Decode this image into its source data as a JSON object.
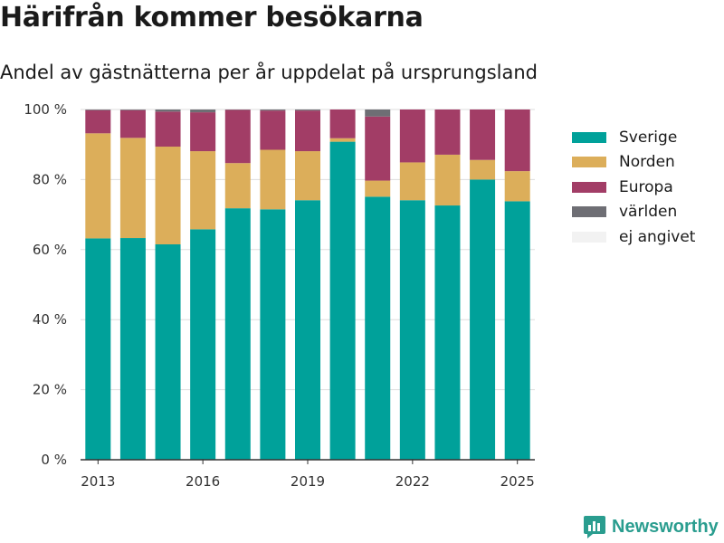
{
  "header": {
    "title": "Härifrån kommer besökarna",
    "subtitle": "Andel av gästnätterna per år uppdelat på ursprungsland"
  },
  "brand": {
    "name": "Newsworthy",
    "icon": "bar-chart-logo-icon",
    "color": "#2a9d8f"
  },
  "colors": {
    "Sverige": "#00a19a",
    "Norden": "#dcae5a",
    "Europa": "#a23d66",
    "världen": "#6e6e74",
    "ej angivet": "#f2f2f2",
    "grid": "#dddddd",
    "axis": "#333333"
  },
  "chart_data": {
    "type": "bar",
    "stacked": true,
    "title": "Härifrån kommer besökarna",
    "subtitle": "Andel av gästnätterna per år uppdelat på ursprungsland",
    "categories": [
      "2013",
      "2014",
      "2015",
      "2016",
      "2017",
      "2018",
      "2019",
      "2020",
      "2021",
      "2022",
      "2023",
      "2024",
      "2025"
    ],
    "x_tick_labels": [
      "2013",
      "2016",
      "2019",
      "2022",
      "2025"
    ],
    "y_tick_labels": [
      "0 %",
      "20 %",
      "40 %",
      "60 %",
      "80 %",
      "100 %"
    ],
    "ylim": [
      0,
      100
    ],
    "grid": true,
    "legend_position": "right",
    "series": [
      {
        "name": "Sverige",
        "values": [
          63.2,
          63.3,
          61.5,
          65.8,
          71.8,
          71.5,
          74.1,
          90.8,
          75.1,
          74.1,
          72.6,
          80.0,
          73.8
        ]
      },
      {
        "name": "Norden",
        "values": [
          30.0,
          28.6,
          27.9,
          22.3,
          12.9,
          17.0,
          14.0,
          1.0,
          4.6,
          10.8,
          14.5,
          5.6,
          8.6
        ]
      },
      {
        "name": "Europa",
        "values": [
          6.6,
          7.9,
          10.0,
          11.1,
          15.2,
          11.2,
          11.6,
          8.2,
          18.3,
          15.1,
          12.9,
          14.4,
          17.6
        ]
      },
      {
        "name": "världen",
        "values": [
          0.2,
          0.2,
          0.6,
          0.8,
          0.1,
          0.3,
          0.3,
          0.0,
          2.0,
          0.0,
          0.0,
          0.0,
          0.0
        ]
      },
      {
        "name": "ej angivet",
        "values": [
          0.0,
          0.0,
          0.0,
          0.0,
          0.0,
          0.0,
          0.0,
          0.0,
          0.0,
          0.0,
          0.0,
          0.0,
          0.0
        ]
      }
    ]
  }
}
